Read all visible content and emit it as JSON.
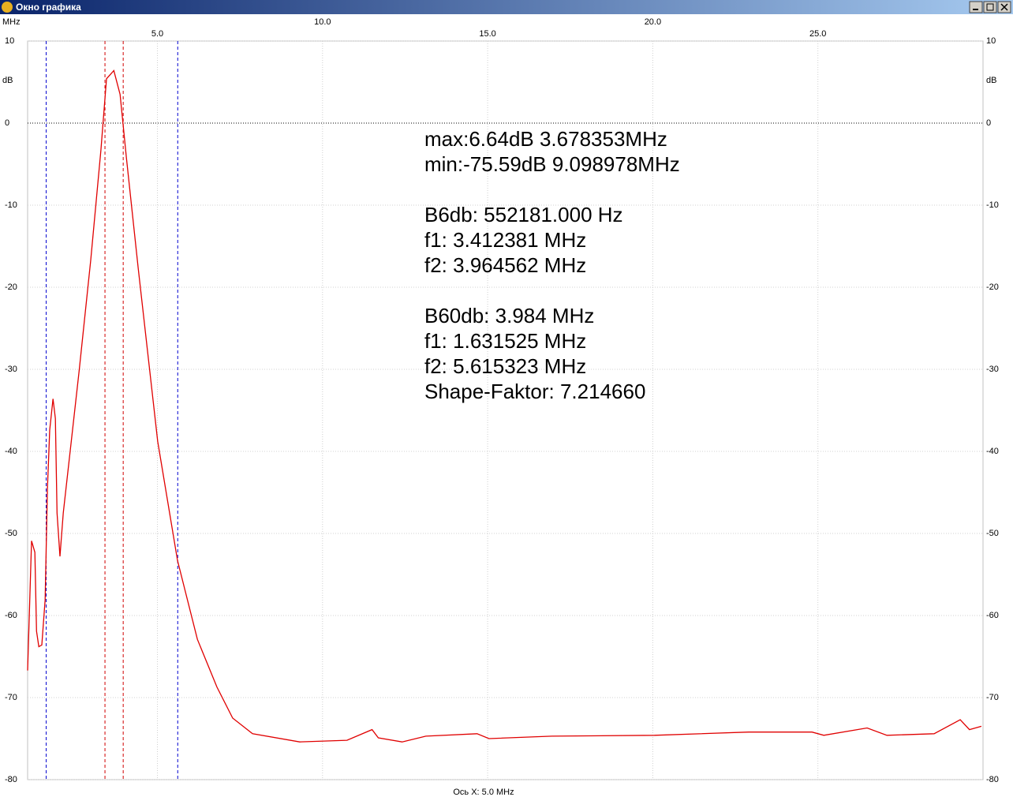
{
  "window": {
    "title": "Окно графика"
  },
  "chart_data": {
    "type": "line",
    "x_unit": "MHz",
    "y_unit": "dB",
    "x_axis_note": "Ось X: 5.0 MHz",
    "xlim": [
      1.07,
      30
    ],
    "ylim": [
      -80,
      10
    ],
    "xticks": [
      {
        "value": 5,
        "label": "5.0"
      },
      {
        "value": 10,
        "label": "10.0"
      },
      {
        "value": 15,
        "label": "15.0"
      },
      {
        "value": 20,
        "label": "20.0"
      },
      {
        "value": 25,
        "label": "25.0"
      }
    ],
    "yticks": [
      10,
      0,
      -10,
      -20,
      -30,
      -40,
      -50,
      -60,
      -70,
      -80
    ],
    "grid": true,
    "series": [
      {
        "color": "#e00000",
        "x": [
          1.07,
          1.19,
          1.29,
          1.34,
          1.41,
          1.5,
          1.6,
          1.67,
          1.74,
          1.84,
          1.91,
          1.96,
          2.05,
          2.15,
          2.63,
          2.98,
          3.29,
          3.46,
          3.68,
          3.87,
          4.06,
          4.42,
          5.01,
          5.61,
          6.21,
          6.8,
          7.28,
          7.88,
          9.31,
          10.74,
          11.5,
          11.69,
          12.41,
          13.13,
          14.68,
          15.04,
          16.95,
          20.05,
          22.91,
          24.82,
          25.18,
          26.49,
          27.09,
          28.52,
          29.31,
          29.59,
          29.95
        ],
        "values": [
          -66.7,
          -50.9,
          -52.3,
          -61.9,
          -63.8,
          -63.6,
          -58.1,
          -44.6,
          -37.4,
          -33.6,
          -36.0,
          -47.5,
          -52.8,
          -47.5,
          -30.2,
          -16.7,
          -3.3,
          5.4,
          6.4,
          3.5,
          -4.2,
          -17.7,
          -38.8,
          -53.3,
          -62.9,
          -68.7,
          -72.5,
          -74.4,
          -75.4,
          -75.2,
          -73.9,
          -74.9,
          -75.4,
          -74.7,
          -74.4,
          -75.0,
          -74.7,
          -74.6,
          -74.2,
          -74.2,
          -74.6,
          -73.7,
          -74.6,
          -74.4,
          -72.7,
          -73.9,
          -73.5
        ]
      }
    ],
    "markers": [
      {
        "value": 1.631525,
        "color": "#0000d0"
      },
      {
        "value": 3.412381,
        "color": "#d00000"
      },
      {
        "value": 3.964562,
        "color": "#d00000"
      },
      {
        "value": 5.615323,
        "color": "#0000d0"
      }
    ],
    "annotation_groups": [
      [
        "max:6.64dB 3.678353MHz",
        "min:-75.59dB 9.098978MHz"
      ],
      [
        "B6db: 552181.000 Hz",
        "f1: 3.412381 MHz",
        "f2: 3.964562 MHz"
      ],
      [
        "B60db: 3.984 MHz",
        "f1: 1.631525 MHz",
        "f2: 5.615323 MHz",
        "Shape-Faktor: 7.214660"
      ]
    ]
  }
}
